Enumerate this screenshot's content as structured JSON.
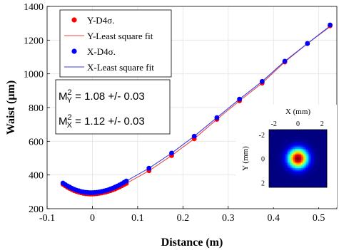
{
  "chart_data": {
    "type": "scatter",
    "xlabel": "Distance (m)",
    "ylabel": "Waist (µm)",
    "xlim": [
      -0.1,
      0.54
    ],
    "ylim": [
      200,
      1400
    ],
    "xticks": [
      "-0.1",
      "0",
      "0.1",
      "0.2",
      "0.3",
      "0.4",
      "0.5"
    ],
    "xtick_values": [
      -0.1,
      0,
      0.1,
      0.2,
      0.3,
      0.4,
      0.5
    ],
    "yticks": [
      "200",
      "400",
      "600",
      "800",
      "1000",
      "1200",
      "1400"
    ],
    "ytick_values": [
      200,
      400,
      600,
      800,
      1000,
      1200,
      1400
    ],
    "grid": true,
    "legend_position": "top-left",
    "series": [
      {
        "name": "Y-D4σ.",
        "marker": "dot",
        "color": "#ff0000",
        "x": [
          -0.065,
          -0.06,
          -0.055,
          -0.05,
          -0.045,
          -0.04,
          -0.035,
          -0.03,
          -0.025,
          -0.02,
          -0.015,
          -0.01,
          -0.005,
          0,
          0.005,
          0.01,
          0.015,
          0.02,
          0.025,
          0.03,
          0.035,
          0.04,
          0.045,
          0.05,
          0.055,
          0.06,
          0.065,
          0.07,
          0.075,
          0.125,
          0.175,
          0.225,
          0.275,
          0.325,
          0.375,
          0.425,
          0.475,
          0.525
        ],
        "y": [
          345,
          336,
          327,
          320,
          313,
          307,
          302,
          298,
          294,
          291,
          289,
          288,
          287,
          287,
          288,
          289,
          291,
          293,
          296,
          299,
          303,
          307,
          312,
          317,
          323,
          329,
          336,
          343,
          350,
          425,
          515,
          615,
          730,
          840,
          945,
          1070,
          1180,
          1285
        ]
      },
      {
        "name": "Y-Least square fit",
        "marker": "line",
        "color": "#e8474b",
        "x": [
          -0.065,
          -0.04,
          -0.02,
          0,
          0.02,
          0.04,
          0.075,
          0.125,
          0.175,
          0.225,
          0.275,
          0.325,
          0.375,
          0.425,
          0.475,
          0.53
        ],
        "y": [
          345,
          307,
          291,
          287,
          293,
          307,
          350,
          425,
          515,
          615,
          730,
          840,
          945,
          1070,
          1180,
          1290
        ]
      },
      {
        "name": "X-D4σ.",
        "marker": "dot",
        "color": "#0000ff",
        "x": [
          -0.065,
          -0.06,
          -0.055,
          -0.05,
          -0.045,
          -0.04,
          -0.035,
          -0.03,
          -0.025,
          -0.02,
          -0.015,
          -0.01,
          -0.005,
          0,
          0.005,
          0.01,
          0.015,
          0.02,
          0.025,
          0.03,
          0.035,
          0.04,
          0.045,
          0.05,
          0.055,
          0.06,
          0.065,
          0.07,
          0.075,
          0.125,
          0.175,
          0.225,
          0.275,
          0.325,
          0.375,
          0.425,
          0.475,
          0.525
        ],
        "y": [
          352,
          343,
          335,
          328,
          321,
          315,
          310,
          306,
          302,
          299,
          297,
          296,
          295,
          295,
          296,
          297,
          299,
          302,
          305,
          308,
          312,
          317,
          322,
          328,
          334,
          341,
          348,
          356,
          364,
          440,
          530,
          630,
          740,
          850,
          955,
          1075,
          1180,
          1290
        ]
      },
      {
        "name": "X-Least square fit",
        "marker": "line",
        "color": "#3b3bde",
        "x": [
          -0.065,
          -0.04,
          -0.02,
          0,
          0.02,
          0.04,
          0.075,
          0.125,
          0.175,
          0.225,
          0.275,
          0.325,
          0.375,
          0.425,
          0.475,
          0.53
        ],
        "y": [
          352,
          315,
          299,
          295,
          302,
          317,
          364,
          440,
          530,
          630,
          740,
          850,
          955,
          1075,
          1180,
          1295
        ]
      }
    ],
    "annotations": {
      "m2y_label": "M",
      "m2y_sup": "2",
      "m2y_sub": "Y",
      "m2y_value": " = 1.08 +/- 0.03",
      "m2x_label": "M",
      "m2x_sup": "2",
      "m2x_sub": "X",
      "m2x_value": " = 1.12 +/- 0.03"
    },
    "inset": {
      "type": "heatmap",
      "xlabel": "X (mm)",
      "ylabel": "Y (mm)",
      "xticks": [
        "-2",
        "0",
        "2"
      ],
      "xtick_values": [
        -2,
        0,
        2
      ],
      "yticks": [
        "-2",
        "0",
        "2"
      ],
      "ytick_values": [
        -2,
        0,
        2
      ],
      "xlim": [
        -2.4,
        2.4
      ],
      "ylim": [
        -2.4,
        2.4
      ],
      "beam_sigma_mm": 0.55,
      "colormap": "jet"
    }
  }
}
